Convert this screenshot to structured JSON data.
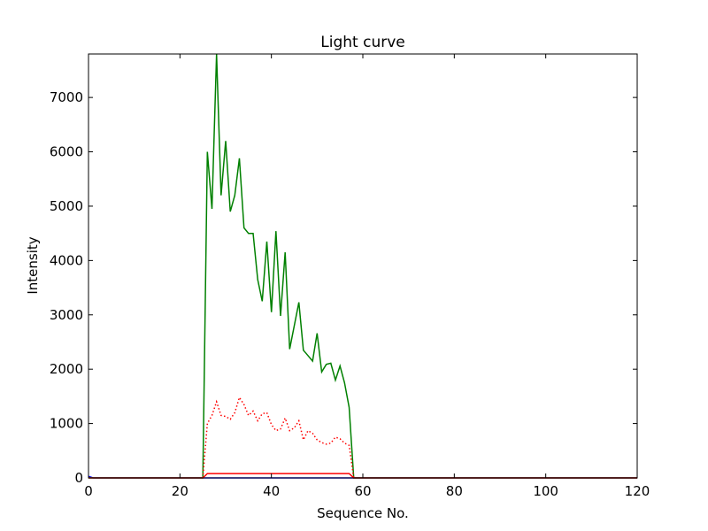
{
  "chart_data": {
    "type": "line",
    "title": "Light curve",
    "xlabel": "Sequence No.",
    "ylabel": "Intensity",
    "xlim": [
      0,
      120
    ],
    "ylim": [
      0,
      7800
    ],
    "xticks": [
      0,
      20,
      40,
      60,
      80,
      100,
      120
    ],
    "yticks": [
      0,
      1000,
      2000,
      3000,
      4000,
      5000,
      6000,
      7000
    ],
    "grid": false,
    "series": [
      {
        "name": "blue",
        "color": "#0000ff",
        "style": "solid",
        "x": [
          0,
          1,
          120
        ],
        "y": [
          30,
          0,
          0
        ]
      },
      {
        "name": "green",
        "color": "#008000",
        "style": "solid",
        "x": [
          0,
          25,
          26,
          27,
          28,
          29,
          30,
          31,
          32,
          33,
          34,
          35,
          36,
          37,
          38,
          39,
          40,
          41,
          42,
          43,
          44,
          45,
          46,
          47,
          48,
          49,
          50,
          51,
          52,
          53,
          54,
          55,
          56,
          57,
          58,
          120
        ],
        "y": [
          0,
          0,
          6000,
          4950,
          7800,
          5200,
          6200,
          4900,
          5200,
          5880,
          4600,
          4500,
          4500,
          3650,
          3250,
          4350,
          3050,
          4540,
          2980,
          4150,
          2370,
          2800,
          3230,
          2350,
          2250,
          2150,
          2660,
          1950,
          2090,
          2110,
          1800,
          2060,
          1750,
          1300,
          0,
          0
        ]
      },
      {
        "name": "red-dotted",
        "color": "#ff0000",
        "style": "dotted",
        "x": [
          25,
          26,
          27,
          28,
          29,
          30,
          31,
          32,
          33,
          34,
          35,
          36,
          37,
          38,
          39,
          40,
          41,
          42,
          43,
          44,
          45,
          46,
          47,
          48,
          49,
          50,
          51,
          52,
          53,
          54,
          55,
          56,
          57,
          58
        ],
        "y": [
          0,
          1000,
          1150,
          1400,
          1150,
          1130,
          1080,
          1200,
          1480,
          1350,
          1150,
          1230,
          1050,
          1180,
          1200,
          980,
          870,
          900,
          1100,
          870,
          920,
          1050,
          700,
          870,
          820,
          700,
          650,
          620,
          640,
          750,
          720,
          640,
          600,
          0
        ]
      },
      {
        "name": "red-solid",
        "color": "#ff0000",
        "style": "solid",
        "x": [
          0,
          25,
          26,
          57,
          58,
          120
        ],
        "y": [
          0,
          0,
          80,
          80,
          0,
          0
        ]
      }
    ]
  }
}
